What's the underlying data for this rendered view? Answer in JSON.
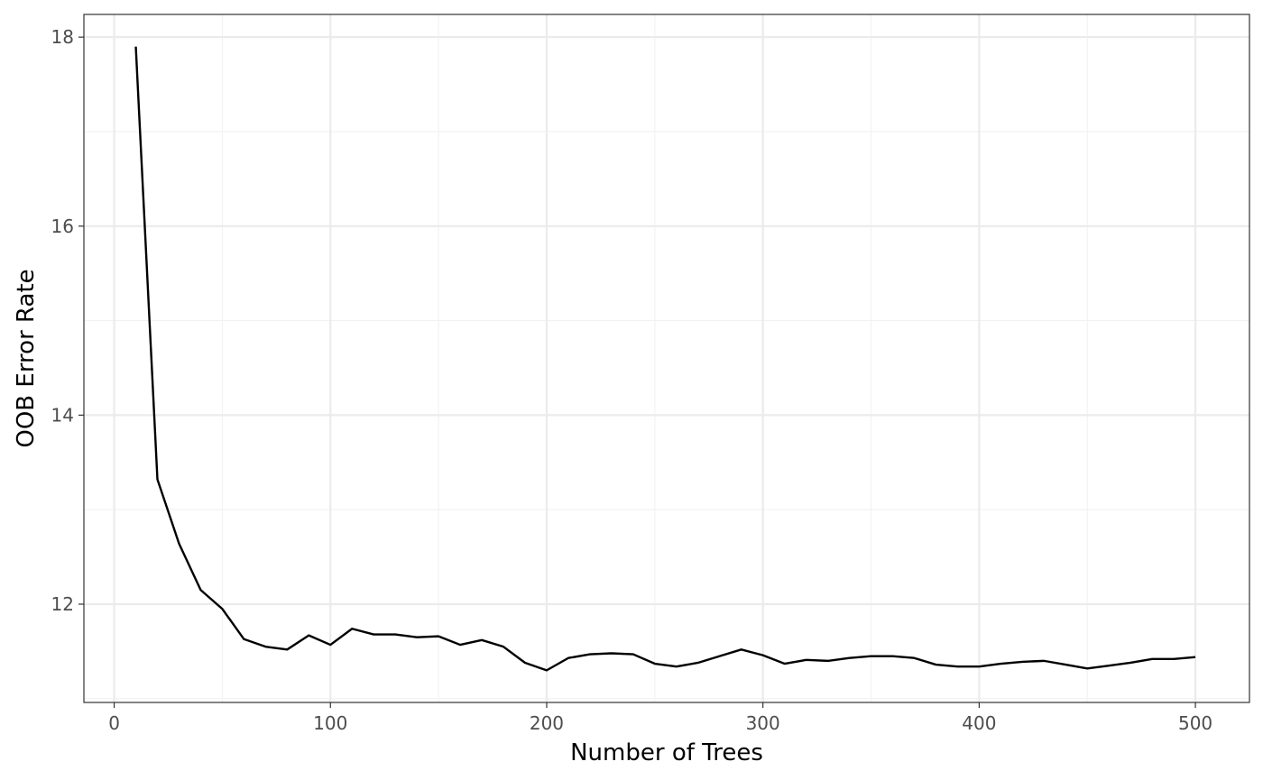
{
  "chart_data": {
    "type": "line",
    "title": "",
    "xlabel": "Number of Trees",
    "ylabel": "OOB Error Rate",
    "xlim": [
      -14,
      525
    ],
    "ylim": [
      10.96,
      18.24
    ],
    "x_ticks": [
      0,
      100,
      200,
      300,
      400,
      500
    ],
    "y_ticks": [
      12,
      14,
      16,
      18
    ],
    "x_tick_labels": [
      "0",
      "100",
      "200",
      "300",
      "400",
      "500"
    ],
    "y_tick_labels": [
      "12",
      "14",
      "16",
      "18"
    ],
    "grid": true,
    "legend": "none",
    "line_color": "#000000",
    "series": [
      {
        "x": [
          10,
          20,
          30,
          40,
          50,
          60,
          70,
          80,
          90,
          100,
          110,
          120,
          130,
          140,
          150,
          160,
          170,
          180,
          190,
          200,
          210,
          220,
          230,
          240,
          250,
          260,
          270,
          280,
          290,
          300,
          310,
          320,
          330,
          340,
          350,
          360,
          370,
          380,
          390,
          400,
          410,
          420,
          430,
          440,
          450,
          460,
          470,
          480,
          490,
          500
        ],
        "y": [
          17.9,
          13.32,
          12.64,
          12.15,
          11.95,
          11.63,
          11.55,
          11.52,
          11.67,
          11.57,
          11.74,
          11.68,
          11.68,
          11.65,
          11.66,
          11.57,
          11.62,
          11.55,
          11.38,
          11.3,
          11.43,
          11.47,
          11.48,
          11.47,
          11.37,
          11.34,
          11.38,
          11.45,
          11.52,
          11.46,
          11.37,
          11.41,
          11.4,
          11.43,
          11.45,
          11.45,
          11.43,
          11.36,
          11.34,
          11.34,
          11.37,
          11.39,
          11.4,
          11.36,
          11.32,
          11.35,
          11.38,
          11.42,
          11.42,
          11.44
        ]
      }
    ]
  }
}
